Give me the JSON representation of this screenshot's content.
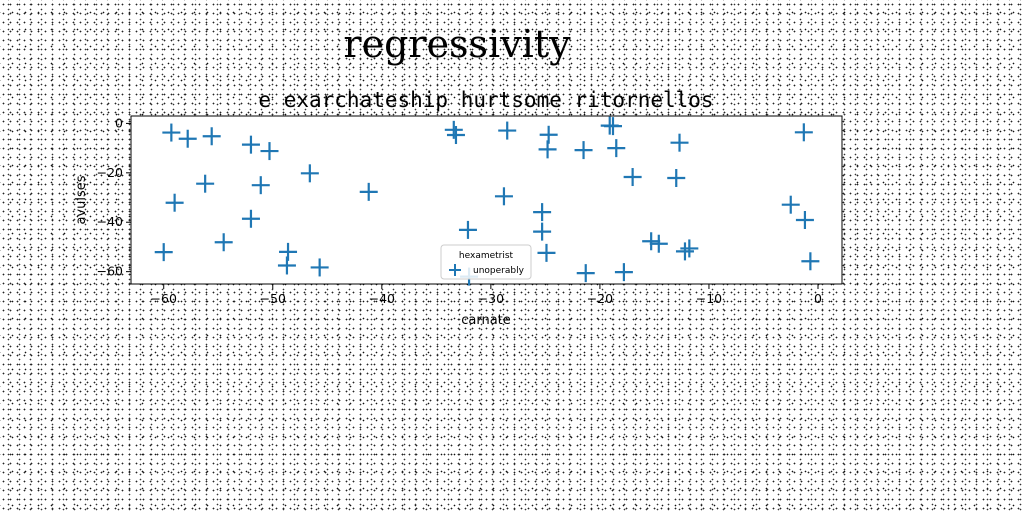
{
  "chart_data": {
    "type": "scatter",
    "title": "regressivity",
    "subtitle": "e exarchateship hurtsome ritornellos",
    "xlabel": "carnate",
    "ylabel": "avulses",
    "xlim": [
      -63,
      2.2
    ],
    "ylim": [
      -65,
      3
    ],
    "xticks": [
      -60,
      -50,
      -40,
      -30,
      -20,
      -10,
      0
    ],
    "yticks": [
      0,
      -20,
      -40,
      -60
    ],
    "grid": false,
    "legend": {
      "title": "hexametrist",
      "placement": "lower-center"
    },
    "marker": "+",
    "color": "#1f77b4",
    "series": [
      {
        "name": "unoperably",
        "points": [
          [
            -59.3,
            -3.7
          ],
          [
            -57.8,
            -6.2
          ],
          [
            -55.6,
            -5.2
          ],
          [
            -52.0,
            -8.6
          ],
          [
            -50.3,
            -11.2
          ],
          [
            -59.0,
            -32.1
          ],
          [
            -56.2,
            -24.4
          ],
          [
            -51.1,
            -25.0
          ],
          [
            -46.6,
            -20.2
          ],
          [
            -41.2,
            -27.7
          ],
          [
            -60.0,
            -52.1
          ],
          [
            -54.5,
            -48.1
          ],
          [
            -52.0,
            -38.6
          ],
          [
            -48.6,
            -52.0
          ],
          [
            -48.7,
            -57.5
          ],
          [
            -45.7,
            -58.3
          ],
          [
            -33.4,
            -2.6
          ],
          [
            -33.2,
            -4.7
          ],
          [
            -32.1,
            -43.1
          ],
          [
            -28.5,
            -2.9
          ],
          [
            -28.8,
            -29.5
          ],
          [
            -24.7,
            -4.6
          ],
          [
            -24.8,
            -10.5
          ],
          [
            -25.3,
            -35.9
          ],
          [
            -25.3,
            -43.8
          ],
          [
            -24.9,
            -52.4
          ],
          [
            -21.5,
            -10.8
          ],
          [
            -21.3,
            -60.6
          ],
          [
            -19.1,
            -0.9
          ],
          [
            -18.8,
            -1.1
          ],
          [
            -18.5,
            -10.0
          ],
          [
            -17.8,
            -60.2
          ],
          [
            -17.0,
            -21.7
          ],
          [
            -15.3,
            -47.7
          ],
          [
            -14.6,
            -48.7
          ],
          [
            -12.7,
            -7.8
          ],
          [
            -13.0,
            -22.1
          ],
          [
            -12.2,
            -51.8
          ],
          [
            -11.8,
            -50.6
          ],
          [
            -2.5,
            -32.9
          ],
          [
            -1.3,
            -3.6
          ],
          [
            -1.2,
            -39.1
          ],
          [
            -0.7,
            -55.8
          ],
          [
            -32.0,
            -62.0
          ]
        ]
      }
    ]
  }
}
